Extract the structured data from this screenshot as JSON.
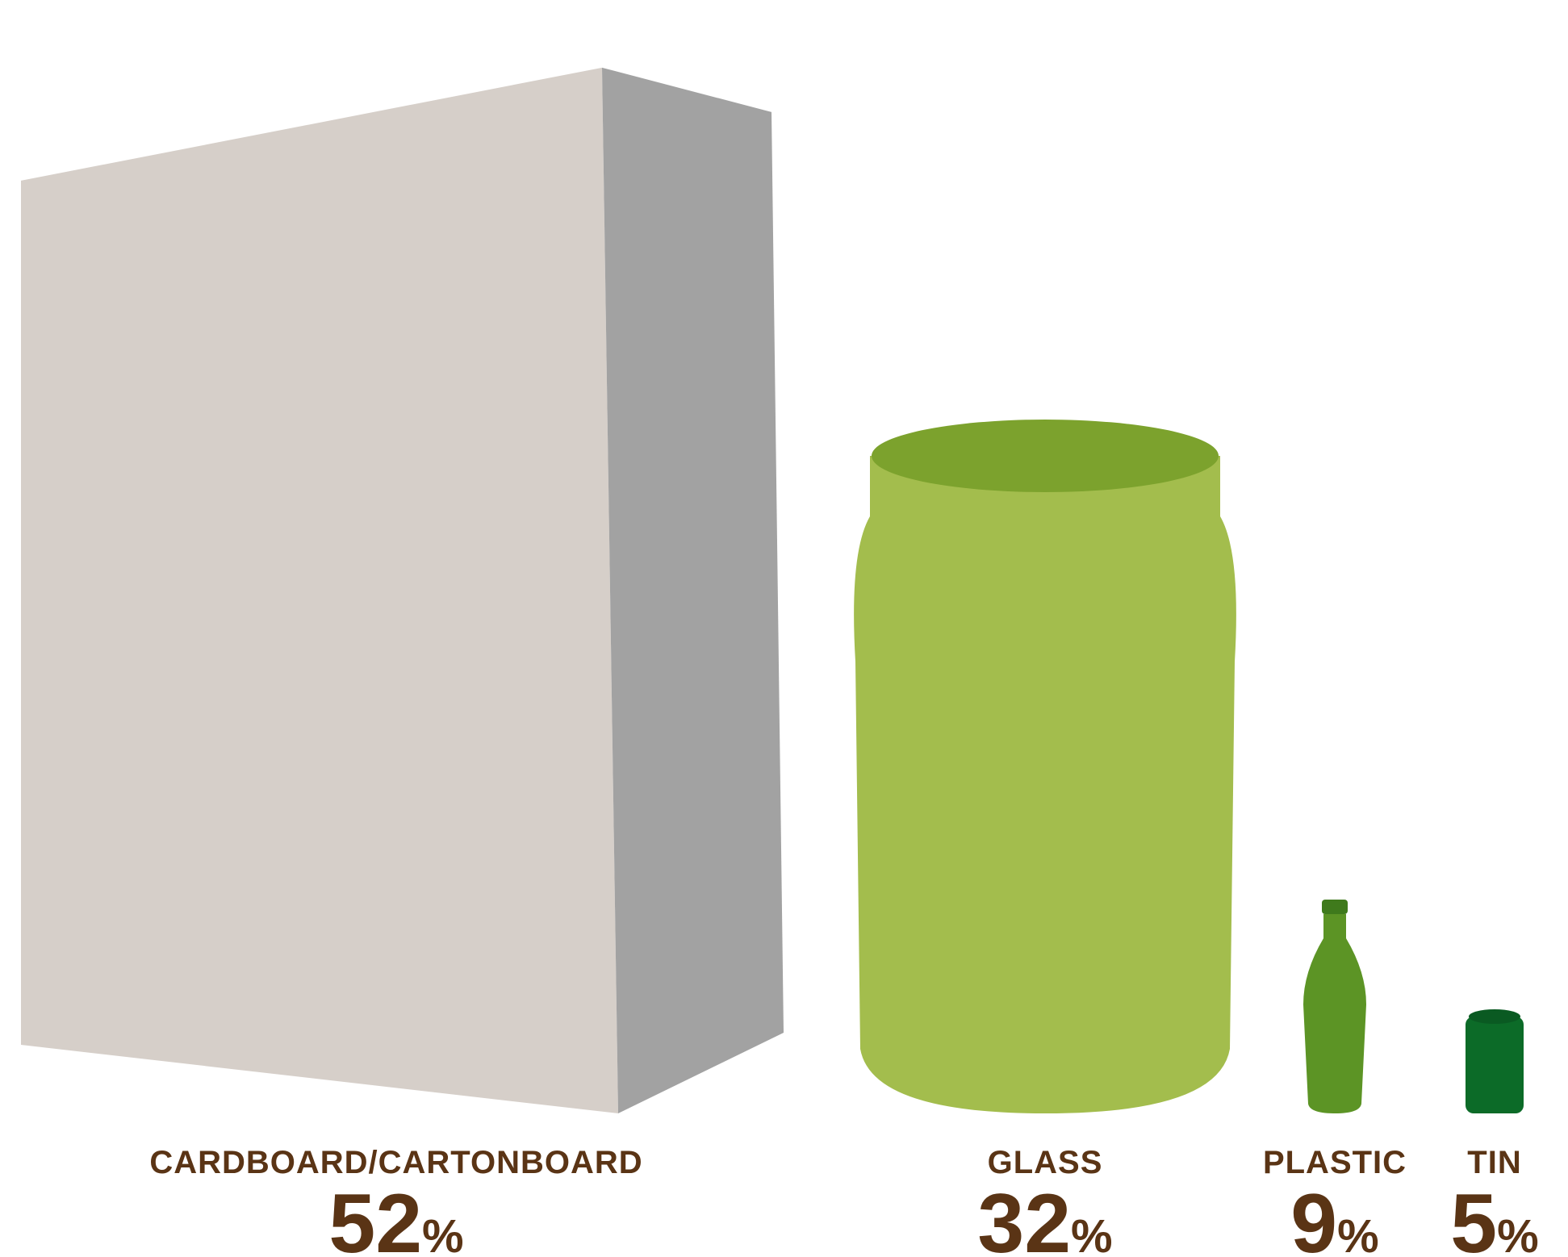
{
  "chart_data": {
    "type": "bar",
    "title": "",
    "xlabel": "",
    "ylabel": "",
    "categories": [
      "CARDBOARD/CARTONBOARD",
      "GLASS",
      "PLASTIC",
      "TIN"
    ],
    "values": [
      52,
      32,
      9,
      5
    ],
    "value_suffix": "%",
    "legend": "none",
    "grid": false,
    "marks": [
      {
        "category": "CARDBOARD/CARTONBOARD",
        "icon": "box-icon",
        "color": "#d6cfc9",
        "side_color": "#a2a2a2"
      },
      {
        "category": "GLASS",
        "icon": "jar-icon",
        "color": "#a3bd4d",
        "lid_color": "#7ca22d"
      },
      {
        "category": "PLASTIC",
        "icon": "bottle-icon",
        "color": "#5c9425",
        "cap_color": "#3f7a1c"
      },
      {
        "category": "TIN",
        "icon": "can-icon",
        "color": "#0c6b28",
        "top_color": "#0a5a22"
      }
    ],
    "label_color": "#5a3415"
  }
}
